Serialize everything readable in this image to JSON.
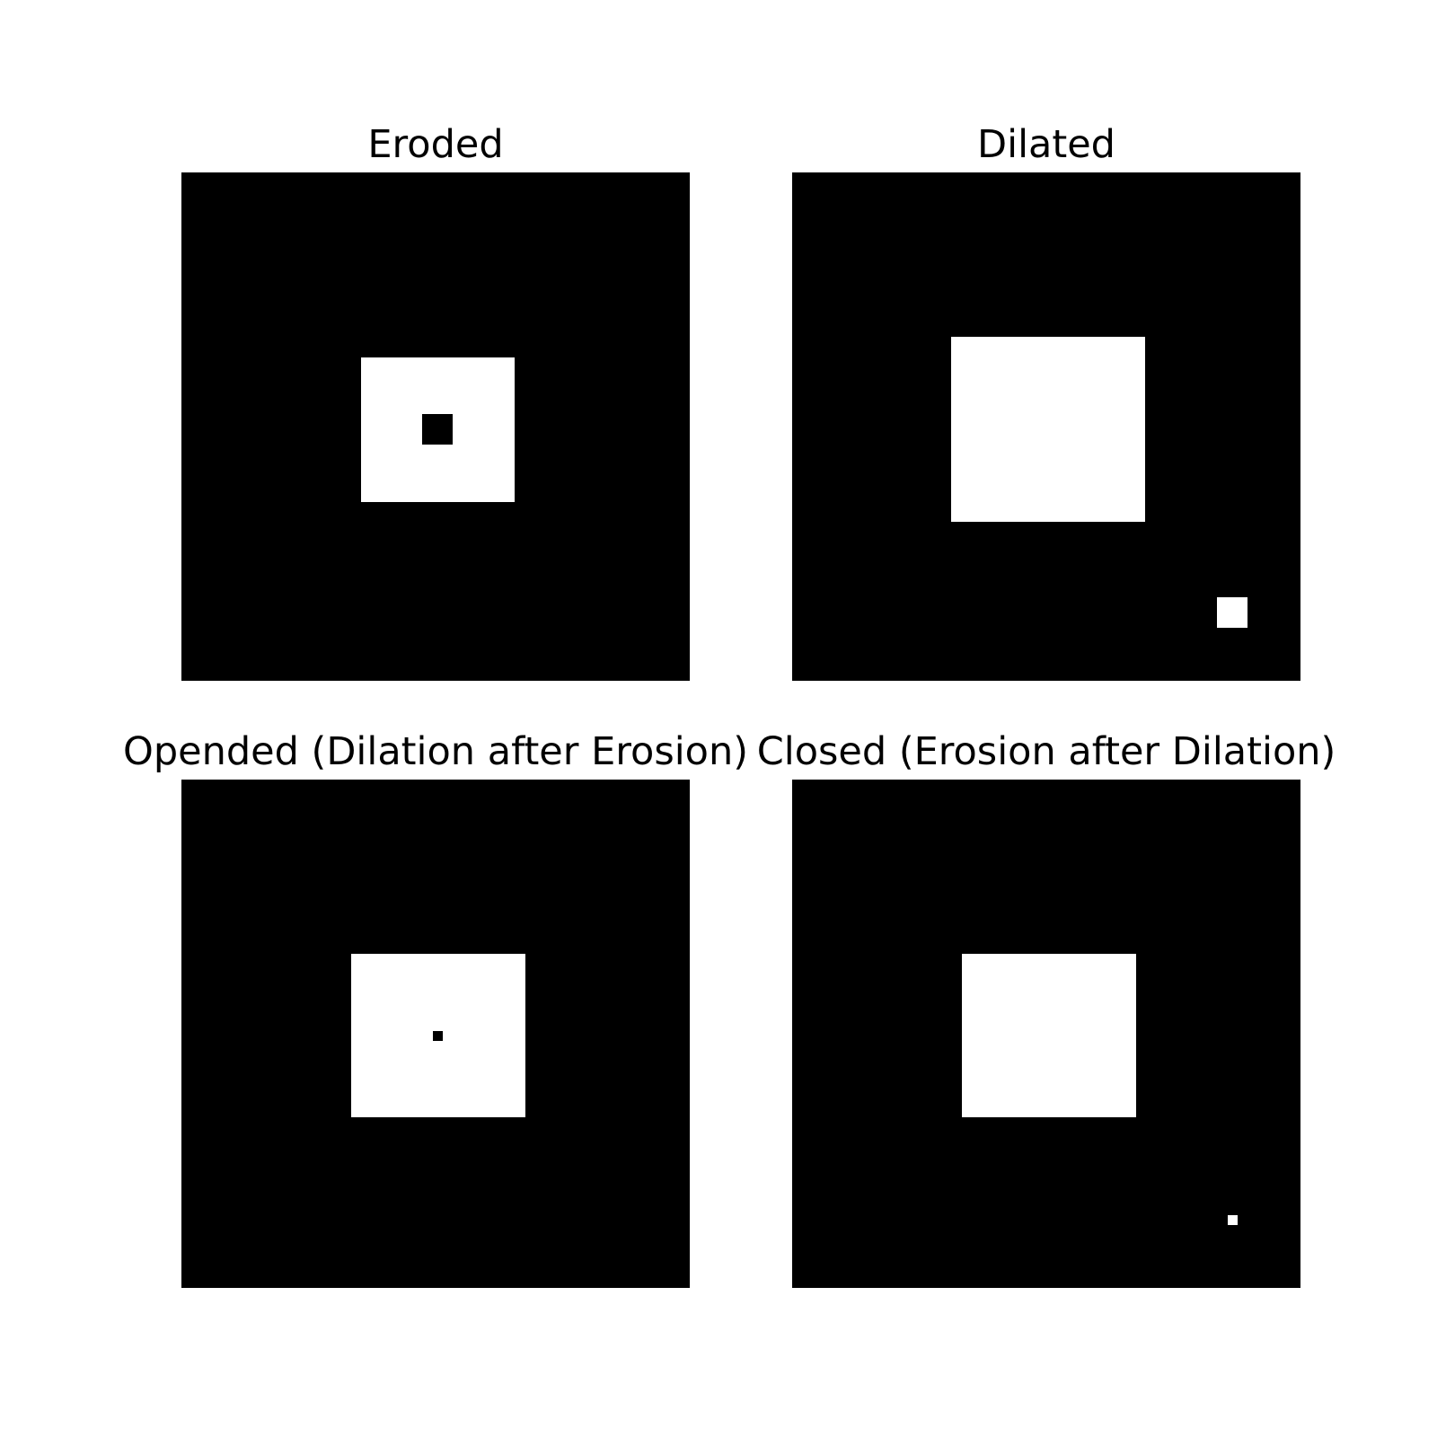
{
  "panels": [
    {
      "title": "Eroded"
    },
    {
      "title": "Dilated"
    },
    {
      "title": "Opended (Dilation after Erosion)"
    },
    {
      "title": "Closed (Erosion after Dilation)"
    }
  ],
  "colors": {
    "background": "#ffffff",
    "image_foreground": "#ffffff",
    "image_background": "#000000",
    "text": "#000000"
  }
}
